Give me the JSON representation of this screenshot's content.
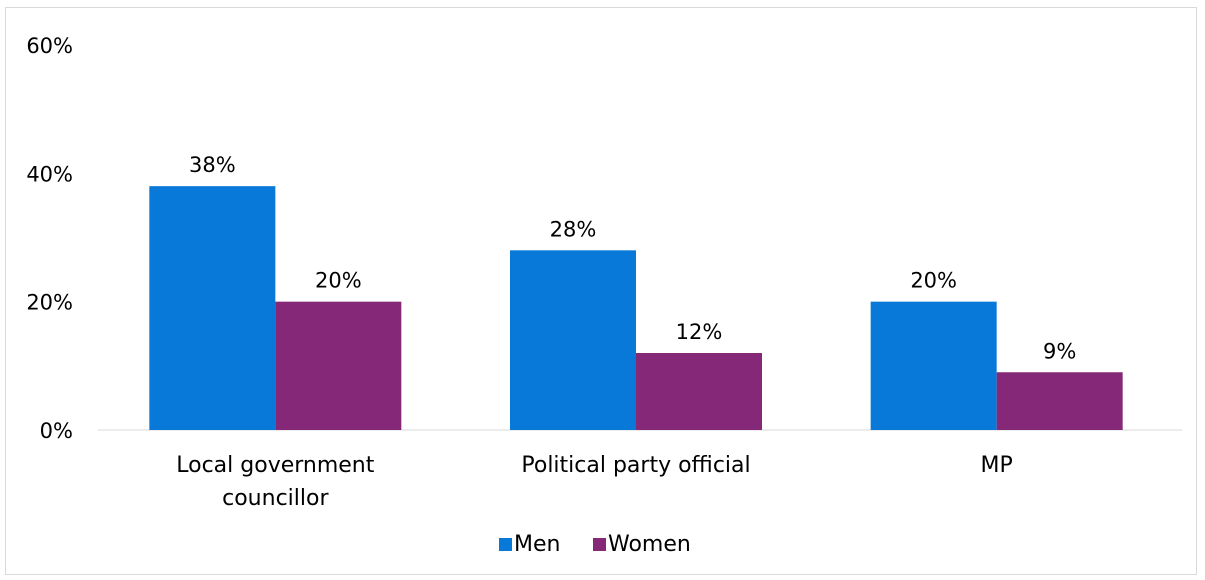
{
  "chart_data": {
    "type": "bar",
    "categories": [
      [
        "Local government",
        "councillor"
      ],
      [
        "Political party official"
      ],
      [
        "MP"
      ]
    ],
    "series": [
      {
        "name": "Men",
        "values": [
          38,
          28,
          20
        ],
        "labels": [
          "38%",
          "28%",
          "20%"
        ],
        "color": "#0878d9"
      },
      {
        "name": "Women",
        "values": [
          20,
          12,
          9
        ],
        "labels": [
          "20%",
          "12%",
          "9%"
        ],
        "color": "#852877"
      }
    ],
    "ylim": [
      0,
      60
    ],
    "yticks": [
      {
        "value": 0,
        "label": "0%"
      },
      {
        "value": 20,
        "label": "20%"
      },
      {
        "value": 40,
        "label": "40%"
      },
      {
        "value": 60,
        "label": "60%"
      }
    ],
    "grid": false,
    "legend_position": "bottom",
    "title": "",
    "xlabel": "",
    "ylabel": ""
  }
}
